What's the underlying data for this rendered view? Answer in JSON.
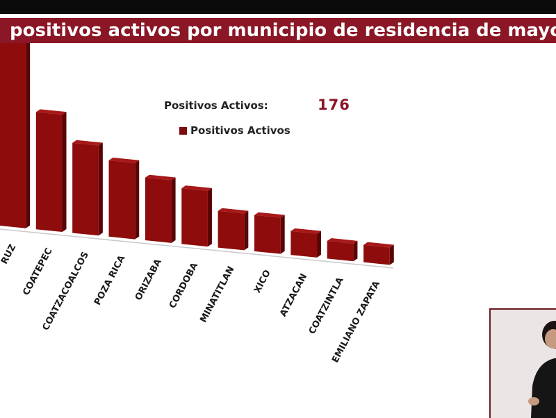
{
  "header": {
    "title": "positivos activos por municipio de residencia de mayor frecu"
  },
  "summary": {
    "label": "Positivos Activos:",
    "total": "176"
  },
  "legend": {
    "label": "Positivos Activos",
    "color": "#7d0b0b"
  },
  "chart_data": {
    "type": "bar",
    "categories": [
      "RUZ",
      "COATEPEC",
      "COATZACOALCOS",
      "POZA RICA",
      "ORIZABA",
      "CORDOBA",
      "MINATITLAN",
      "XICO",
      "ATZACAN",
      "COATZINTLA",
      "EMILIANO ZAPATA"
    ],
    "series": [
      {
        "name": "Positivos Activos",
        "values": [
          30,
          18,
          14,
          12,
          10,
          9,
          6,
          6,
          4,
          3,
          3
        ]
      }
    ],
    "legend_position": "top",
    "grid": false,
    "colors": {
      "front": "#8e0c0c",
      "side": "#5a0505",
      "top": "#a81818"
    }
  },
  "interpreter": {
    "name": "sign-language-interpreter"
  }
}
